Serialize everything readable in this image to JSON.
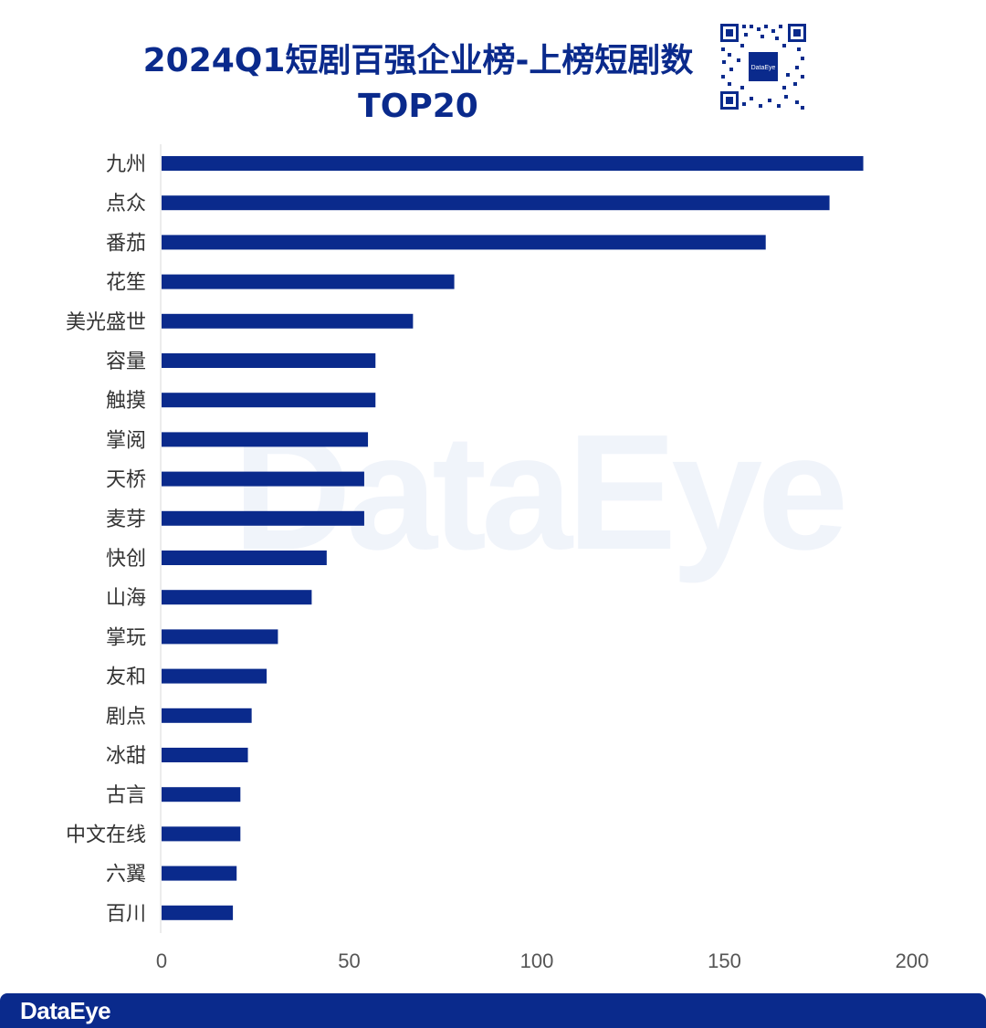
{
  "brand": {
    "name": "DataEye",
    "primary_color": "#0a2a8c",
    "bar_color": "#0a2a8c"
  },
  "chart_data": {
    "type": "bar",
    "orientation": "horizontal",
    "title_line1": "2024Q1短剧百强企业榜-上榜短剧数",
    "title_line2": "TOP20",
    "categories": [
      "九州",
      "点众",
      "番茄",
      "花笙",
      "美光盛世",
      "容量",
      "触摸",
      "掌阅",
      "天桥",
      "麦芽",
      "快创",
      "山海",
      "掌玩",
      "友和",
      "剧点",
      "冰甜",
      "古言",
      "中文在线",
      "六翼",
      "百川"
    ],
    "values": [
      187,
      178,
      161,
      78,
      67,
      57,
      57,
      55,
      54,
      54,
      44,
      40,
      31,
      28,
      24,
      23,
      21,
      21,
      20,
      19
    ],
    "xlim": [
      0,
      200
    ],
    "xticks": [
      0,
      50,
      100,
      150,
      200
    ],
    "xtick_labels": [
      "0",
      "50",
      "100",
      "150",
      "200"
    ],
    "grid": false,
    "legend": "none"
  }
}
